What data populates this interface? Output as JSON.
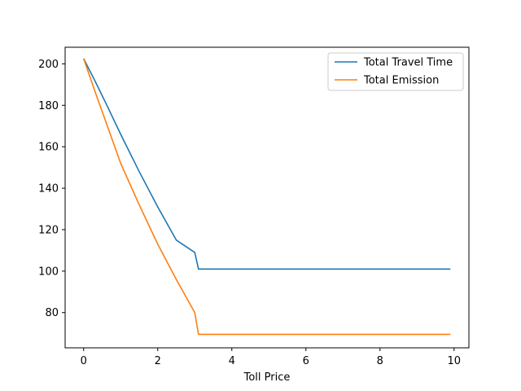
{
  "chart_data": {
    "type": "line",
    "xlabel": "Toll Price",
    "ylabel": "",
    "xlim": [
      -0.5,
      10.4
    ],
    "ylim": [
      63,
      208
    ],
    "xticks": [
      0,
      2,
      4,
      6,
      8,
      10
    ],
    "yticks": [
      80,
      100,
      120,
      140,
      160,
      180,
      200
    ],
    "grid": false,
    "legend_position": "top-right",
    "series": [
      {
        "name": "Total Travel Time",
        "color": "#1f77b4",
        "x": [
          0,
          0.3,
          0.6,
          1.0,
          1.5,
          2.0,
          2.5,
          3.0,
          3.1,
          4,
          6,
          8,
          9.9
        ],
        "y": [
          202.5,
          192,
          181,
          166,
          148,
          131,
          115,
          109,
          101,
          101,
          101,
          101,
          101
        ]
      },
      {
        "name": "Total Emission",
        "color": "#ff7f0e",
        "x": [
          0,
          0.3,
          0.6,
          1.0,
          1.5,
          2.0,
          2.5,
          3.0,
          3.1,
          4,
          6,
          8,
          9.9
        ],
        "y": [
          202.5,
          187,
          172,
          152,
          132,
          113,
          96,
          80,
          69.5,
          69.5,
          69.5,
          69.5,
          69.5
        ]
      }
    ]
  }
}
